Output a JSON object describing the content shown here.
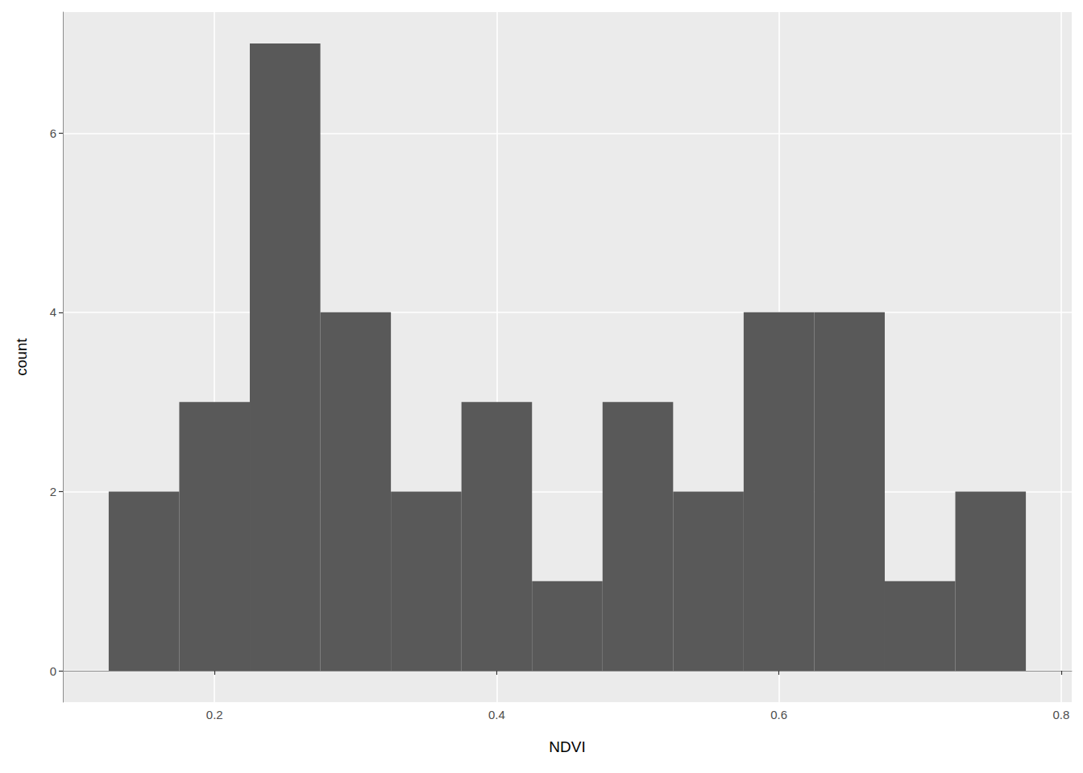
{
  "chart_data": {
    "type": "histogram",
    "xlabel": "NDVI",
    "ylabel": "count",
    "bins": [
      0.125,
      0.175,
      0.225,
      0.275,
      0.325,
      0.375,
      0.425,
      0.475,
      0.525,
      0.575,
      0.625,
      0.675,
      0.725,
      0.775
    ],
    "counts": [
      2,
      3,
      7,
      4,
      2,
      3,
      1,
      3,
      2,
      4,
      4,
      1,
      2
    ],
    "color": "#595959",
    "xlim": [
      0.0925,
      0.8075
    ],
    "xticks": [
      0.2,
      0.4,
      0.6,
      0.8
    ],
    "ylim": [
      -0.35,
      7.35
    ],
    "yticks": [
      0,
      2,
      4,
      6
    ],
    "grid": true
  }
}
